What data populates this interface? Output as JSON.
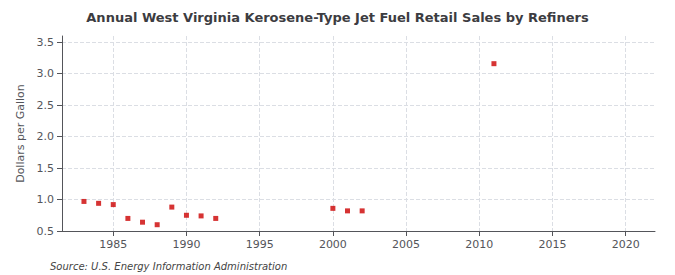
{
  "chart_data": {
    "type": "scatter",
    "title": "Annual West Virginia Kerosene-Type Jet Fuel Retail Sales by Refiners",
    "ylabel": "Dollars per Gallon",
    "annotations": [
      "Source: U.S. Energy Information Administration"
    ],
    "x": [
      1983,
      1984,
      1985,
      1986,
      1987,
      1988,
      1989,
      1990,
      1991,
      1992,
      2000,
      2001,
      2002,
      2011
    ],
    "values": [
      0.97,
      0.94,
      0.92,
      0.7,
      0.64,
      0.6,
      0.88,
      0.75,
      0.74,
      0.7,
      0.86,
      0.82,
      0.82,
      3.16
    ],
    "color": "#cc0000",
    "marker": "square",
    "xlim": [
      1981.5,
      2022
    ],
    "xticks": [
      1985,
      1990,
      1995,
      2000,
      2005,
      2010,
      2015,
      2020
    ],
    "ylim": [
      0.5,
      3.6
    ],
    "yticks": [
      0.5,
      {
        "value": 1,
        "label": "1.0"
      },
      1.5,
      {
        "value": 2,
        "label": "2.0"
      },
      2.5,
      {
        "value": 3,
        "label": "3.0"
      },
      3.5
    ],
    "grid": true
  }
}
